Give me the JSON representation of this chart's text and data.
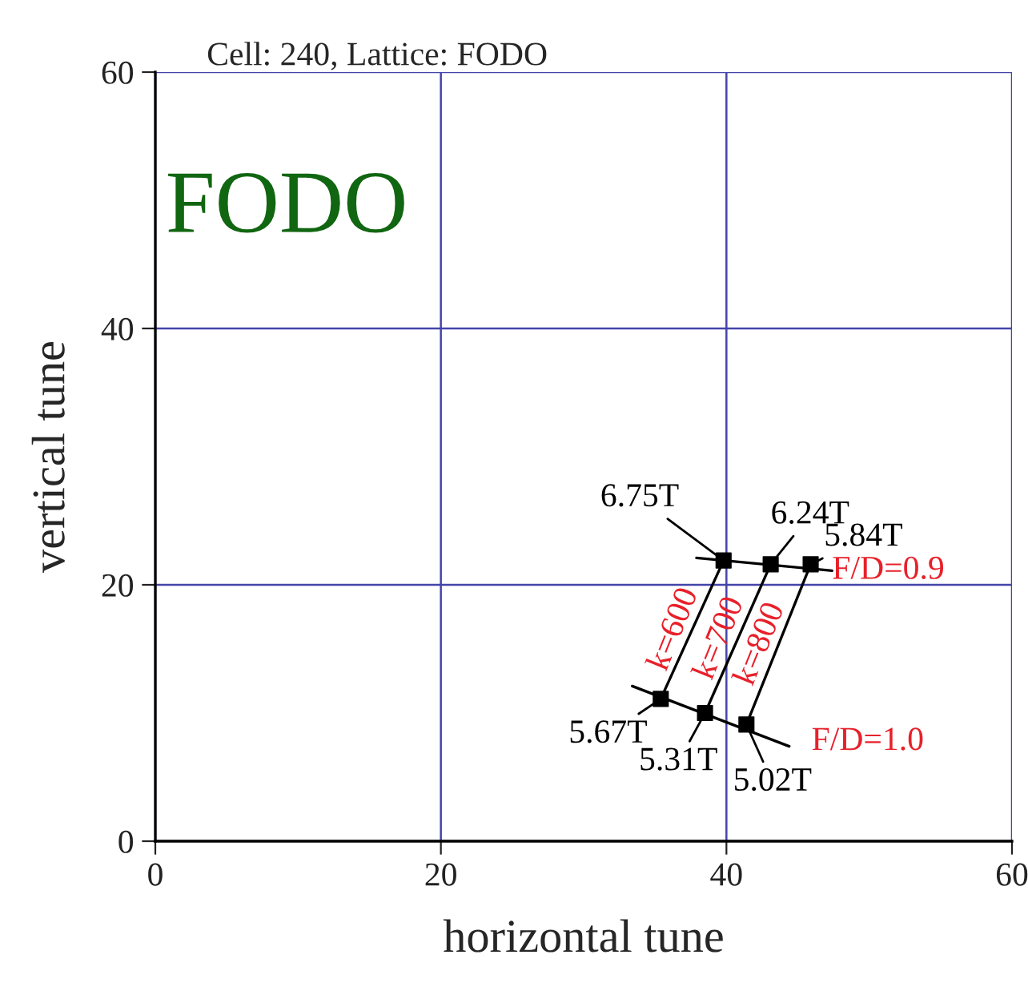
{
  "chart_data": {
    "type": "line",
    "title": "Cell: 240, Lattice: FODO",
    "xlabel": "horizontal tune",
    "ylabel": "vertical tune",
    "xlim": [
      0,
      60
    ],
    "ylim": [
      0,
      60
    ],
    "xticks": [
      0,
      20,
      40,
      60
    ],
    "yticks": [
      0,
      20,
      40,
      60
    ],
    "grid": true,
    "series": [
      {
        "type": "scatter",
        "marker": "square",
        "color": "#000000",
        "x": [
          39.8,
          43.1,
          45.9
        ],
        "values": [
          21.9,
          21.6,
          21.6
        ]
      },
      {
        "type": "scatter",
        "marker": "square",
        "color": "#000000",
        "x": [
          35.4,
          38.5,
          41.4
        ],
        "values": [
          11.1,
          10.0,
          9.1
        ]
      },
      {
        "color": "#000000",
        "x": [
          37.9,
          47.4
        ],
        "values": [
          22.1,
          21.1
        ]
      },
      {
        "color": "#000000",
        "x": [
          33.4,
          44.4
        ],
        "values": [
          12.1,
          7.4
        ]
      },
      {
        "color": "#000000",
        "x": [
          35.4,
          39.8
        ],
        "values": [
          11.1,
          21.9
        ]
      },
      {
        "color": "#000000",
        "x": [
          38.5,
          43.1
        ],
        "values": [
          10.0,
          21.6
        ]
      },
      {
        "color": "#000000",
        "x": [
          41.4,
          45.9
        ],
        "values": [
          9.1,
          21.6
        ]
      }
    ],
    "annotations": [
      "FODO",
      {
        "text": "6.75T",
        "x": 39.8,
        "y": 21.9
      },
      {
        "text": "6.24T",
        "x": 43.1,
        "y": 21.6
      },
      {
        "text": "5.84T",
        "x": 45.9,
        "y": 21.6
      },
      {
        "text": "5.67T",
        "x": 35.4,
        "y": 11.1
      },
      {
        "text": "5.31T",
        "x": 38.5,
        "y": 10.0
      },
      {
        "text": "5.02T",
        "x": 41.4,
        "y": 9.1
      },
      {
        "text": "F/D=0.9",
        "x": 47.4,
        "y": 21.1
      },
      {
        "text": "F/D=1.0",
        "x": 44.4,
        "y": 7.4
      },
      {
        "text": "k=600",
        "x": 37.6,
        "y": 16.5
      },
      {
        "text": "k=700",
        "x": 40.8,
        "y": 15.8
      },
      {
        "text": "k=800",
        "x": 43.65,
        "y": 15.35
      }
    ]
  }
}
